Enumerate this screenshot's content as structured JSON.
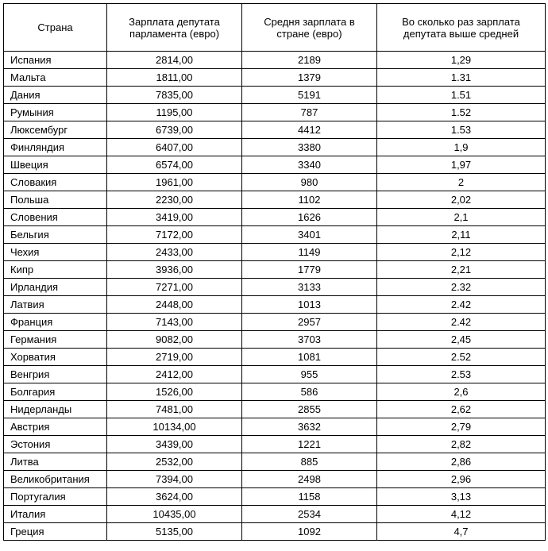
{
  "table": {
    "columns": [
      "Страна",
      "Зарплата депутата парламента (евро)",
      "Средня зарплата в стране (евро)",
      "Во сколько раз зарплата депутата выше средней"
    ],
    "rows": [
      [
        "Испания",
        "2814,00",
        "2189",
        "1,29"
      ],
      [
        "Мальта",
        "1811,00",
        "1379",
        "1.31"
      ],
      [
        "Дания",
        "7835,00",
        "5191",
        "1.51"
      ],
      [
        "Румыния",
        "1195,00",
        "787",
        "1.52"
      ],
      [
        "Люксембург",
        "6739,00",
        "4412",
        "1.53"
      ],
      [
        "Финляндия",
        "6407,00",
        "3380",
        "1,9"
      ],
      [
        "Швеция",
        "6574,00",
        "3340",
        "1,97"
      ],
      [
        "Словакия",
        "1961,00",
        "980",
        "2"
      ],
      [
        "Польша",
        "2230,00",
        "1102",
        "2,02"
      ],
      [
        "Словения",
        "3419,00",
        "1626",
        "2,1"
      ],
      [
        "Бельгия",
        "7172,00",
        "3401",
        "2,11"
      ],
      [
        "Чехия",
        "2433,00",
        "1149",
        "2,12"
      ],
      [
        "Кипр",
        "3936,00",
        "1779",
        "2,21"
      ],
      [
        "Ирландия",
        "7271,00",
        "3133",
        "2.32"
      ],
      [
        "Латвия",
        "2448,00",
        "1013",
        "2.42"
      ],
      [
        "Франция",
        "7143,00",
        "2957",
        "2.42"
      ],
      [
        "Германия",
        "9082,00",
        "3703",
        "2,45"
      ],
      [
        "Хорватия",
        "2719,00",
        "1081",
        "2.52"
      ],
      [
        "Венгрия",
        "2412,00",
        "955",
        "2.53"
      ],
      [
        "Болгария",
        "1526,00",
        "586",
        "2,6"
      ],
      [
        "Нидерланды",
        "7481,00",
        "2855",
        "2,62"
      ],
      [
        "Австрия",
        "10134,00",
        "3632",
        "2,79"
      ],
      [
        "Эстония",
        "3439,00",
        "1221",
        "2,82"
      ],
      [
        "Литва",
        "2532,00",
        "885",
        "2,86"
      ],
      [
        "Великобритания",
        "7394,00",
        "2498",
        "2,96"
      ],
      [
        "Португалия",
        "3624,00",
        "1158",
        "3,13"
      ],
      [
        "Италия",
        "10435,00",
        "2534",
        "4,12"
      ],
      [
        "Греция",
        "5135,00",
        "1092",
        "4,7"
      ]
    ]
  }
}
